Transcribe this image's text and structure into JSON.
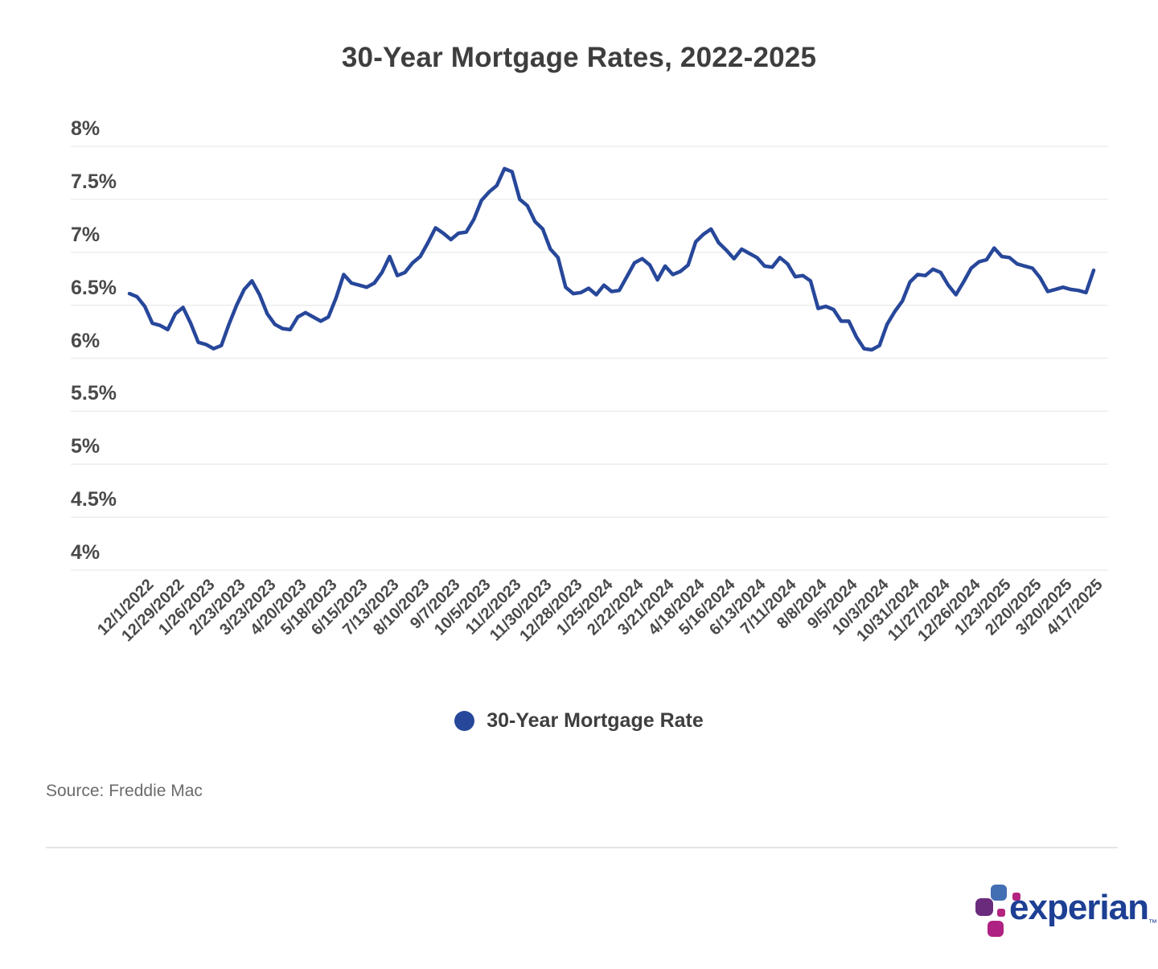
{
  "title": "30-Year Mortgage Rates, 2022-2025",
  "legend": {
    "label": "30-Year Mortgage Rate",
    "marker_color": "#27479a"
  },
  "source": "Source: Freddie Mac",
  "brand": {
    "name": "experian",
    "tm": "™"
  },
  "colors": {
    "line": "#27479a",
    "grid": "#ededed",
    "axis_text": "#4a4a4a",
    "title_text": "#3e3e3e",
    "logo_blue": "#426eb4",
    "logo_purple": "#6b2b7c",
    "logo_magenta": "#af2182"
  },
  "chart_data": {
    "type": "line",
    "title": "30-Year Mortgage Rates, 2022-2025",
    "xlabel": "",
    "ylabel": "",
    "y_range": [
      4,
      8
    ],
    "y_ticks": [
      "8%",
      "7.5%",
      "7%",
      "6.5%",
      "6%",
      "5.5%",
      "5%",
      "4.5%",
      "4%"
    ],
    "grid": "horizontal",
    "legend_position": "bottom",
    "x_tick_labels": [
      "12/1/2022",
      "12/29/2022",
      "1/26/2023",
      "2/23/2023",
      "3/23/2023",
      "4/20/2023",
      "5/18/2023",
      "6/15/2023",
      "7/13/2023",
      "8/10/2023",
      "9/7/2023",
      "10/5/2023",
      "11/2/2023",
      "11/30/2023",
      "12/28/2023",
      "1/25/2024",
      "2/22/2024",
      "3/21/2024",
      "4/18/2024",
      "5/16/2024",
      "6/13/2024",
      "7/11/2024",
      "8/8/2024",
      "9/5/2024",
      "10/3/2024",
      "10/31/2024",
      "11/27/2024",
      "12/26/2024",
      "1/23/2025",
      "2/20/2025",
      "3/20/2025",
      "4/17/2025"
    ],
    "x_tick_start_index": 2,
    "x_tick_every": 4,
    "series": [
      {
        "name": "30-Year Mortgage Rate",
        "color": "#27479a",
        "values": [
          6.61,
          6.58,
          6.49,
          6.33,
          6.31,
          6.27,
          6.42,
          6.48,
          6.33,
          6.15,
          6.13,
          6.09,
          6.12,
          6.32,
          6.5,
          6.65,
          6.73,
          6.6,
          6.42,
          6.32,
          6.28,
          6.27,
          6.39,
          6.43,
          6.39,
          6.35,
          6.39,
          6.57,
          6.79,
          6.71,
          6.69,
          6.67,
          6.71,
          6.81,
          6.96,
          6.78,
          6.81,
          6.9,
          6.96,
          7.09,
          7.23,
          7.18,
          7.12,
          7.18,
          7.19,
          7.31,
          7.49,
          7.57,
          7.63,
          7.79,
          7.76,
          7.5,
          7.44,
          7.29,
          7.22,
          7.03,
          6.95,
          6.67,
          6.61,
          6.62,
          6.66,
          6.6,
          6.69,
          6.63,
          6.64,
          6.77,
          6.9,
          6.94,
          6.88,
          6.74,
          6.87,
          6.79,
          6.82,
          6.88,
          7.1,
          7.17,
          7.22,
          7.09,
          7.02,
          6.94,
          7.03,
          6.99,
          6.95,
          6.87,
          6.86,
          6.95,
          6.89,
          6.77,
          6.78,
          6.73,
          6.47,
          6.49,
          6.46,
          6.35,
          6.35,
          6.2,
          6.09,
          6.08,
          6.12,
          6.32,
          6.44,
          6.54,
          6.72,
          6.79,
          6.78,
          6.84,
          6.81,
          6.69,
          6.6,
          6.72,
          6.85,
          6.91,
          6.93,
          7.04,
          6.96,
          6.95,
          6.89,
          6.87,
          6.85,
          6.76,
          6.63,
          6.65,
          6.67,
          6.65,
          6.64,
          6.62,
          6.83
        ]
      }
    ]
  }
}
